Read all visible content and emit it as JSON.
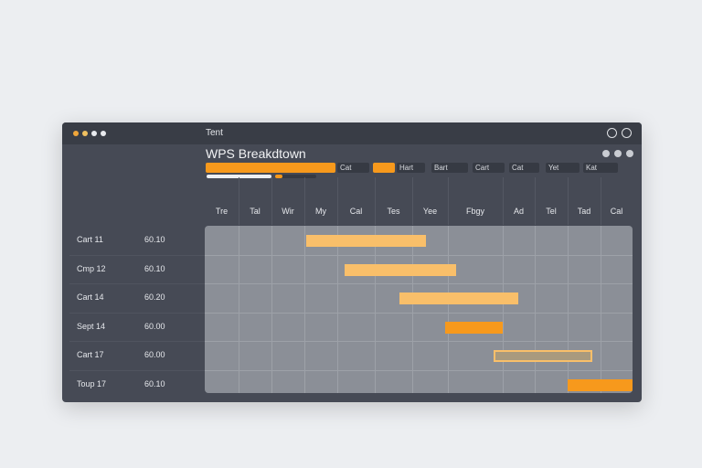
{
  "window": {
    "title": "Tent",
    "dots": [
      "#f0a63a",
      "#f0c060",
      "#e8eaee",
      "#e8eaee"
    ]
  },
  "header": {
    "title": "WPS Breakdtown",
    "progress": 0.75
  },
  "toolbar": {
    "chips": [
      "Cat",
      "",
      "Hart",
      "Bart",
      "Cart",
      "Cat",
      "Yet",
      "Kat"
    ]
  },
  "colors": {
    "accent": "#f7991c",
    "light_bar": "#f9bf6a"
  },
  "chart_data": {
    "type": "gantt",
    "columns": [
      "Tre",
      "Tal",
      "Wir",
      "My",
      "Cal",
      "Tes",
      "Yee",
      "Fbgy",
      "Ad",
      "Tel",
      "Tad",
      "Cal"
    ],
    "rows": [
      {
        "label": "Cart 11",
        "value": "60.10",
        "start": 3.05,
        "end": 6.38,
        "style": "light"
      },
      {
        "label": "Cmp 12",
        "value": "60.10",
        "start": 4.2,
        "end": 7.15,
        "style": "light"
      },
      {
        "label": "Cart 14",
        "value": "60.20",
        "start": 5.66,
        "end": 8.5,
        "style": "light"
      },
      {
        "label": "Sept 14",
        "value": "60.00",
        "start": 6.92,
        "end": 8.0,
        "style": "solid"
      },
      {
        "label": "Cart 17",
        "value": "60.00",
        "start": 7.83,
        "end": 10.75,
        "style": "outline"
      },
      {
        "label": "Toup 17",
        "value": "60.10",
        "start": 10.0,
        "end": 12.0,
        "style": "solid"
      }
    ]
  }
}
